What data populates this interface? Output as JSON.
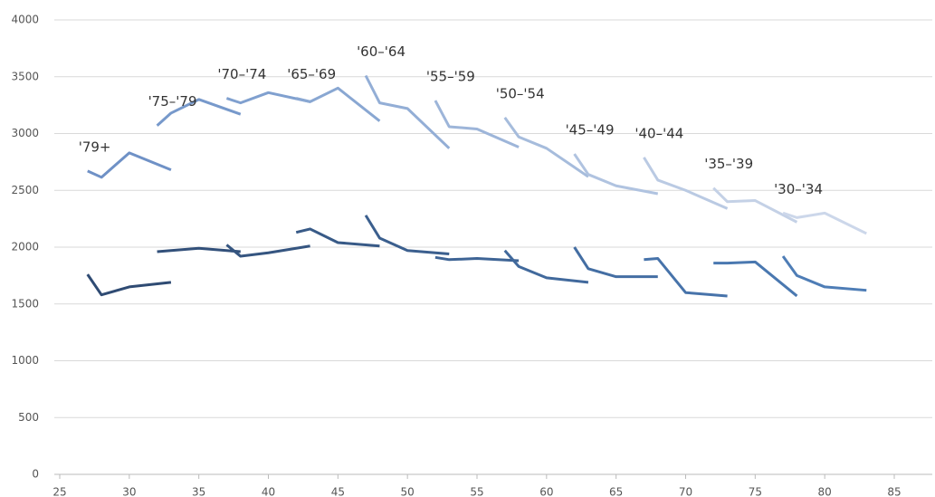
{
  "chart_data": {
    "type": "line",
    "xlim": [
      25,
      85
    ],
    "xticks": [
      25,
      30,
      35,
      40,
      45,
      50,
      55,
      60,
      65,
      70,
      75,
      80,
      85
    ],
    "ylim": [
      0,
      4000
    ],
    "yticks": [
      0,
      500,
      1000,
      1500,
      2000,
      2500,
      3000,
      3500,
      4000
    ],
    "grid": true,
    "series": [
      {
        "name": "'79+",
        "color": "#6f91c6",
        "x": [
          27,
          28,
          30,
          33
        ],
        "values": [
          2670,
          2615,
          2830,
          2680
        ]
      },
      {
        "name": "'75–'79",
        "color": "#7799cb",
        "x": [
          32,
          33,
          35,
          38
        ],
        "values": [
          3070,
          3180,
          3300,
          3170
        ]
      },
      {
        "name": "'70–'74",
        "color": "#80a0cf",
        "x": [
          37,
          38,
          40,
          43
        ],
        "values": [
          3310,
          3270,
          3360,
          3280
        ]
      },
      {
        "name": "'65–'69",
        "color": "#89a7d2",
        "x": [
          42,
          43,
          45,
          48
        ],
        "values": [
          3310,
          3280,
          3400,
          3110
        ]
      },
      {
        "name": "'60–'64",
        "color": "#93aed6",
        "x": [
          47,
          48,
          50,
          53
        ],
        "values": [
          3510,
          3270,
          3220,
          2870
        ]
      },
      {
        "name": "'55–'59",
        "color": "#9db5d9",
        "x": [
          52,
          53,
          55,
          58
        ],
        "values": [
          3290,
          3060,
          3040,
          2880
        ]
      },
      {
        "name": "'50–'54",
        "color": "#a6bcdc",
        "x": [
          57,
          58,
          60,
          63
        ],
        "values": [
          3140,
          2970,
          2870,
          2620
        ]
      },
      {
        "name": "'45–'49",
        "color": "#b0c3e0",
        "x": [
          62,
          63,
          65,
          68
        ],
        "values": [
          2820,
          2640,
          2540,
          2470
        ]
      },
      {
        "name": "'40–'44",
        "color": "#bacae3",
        "x": [
          67,
          68,
          70,
          73
        ],
        "values": [
          2790,
          2590,
          2500,
          2340
        ]
      },
      {
        "name": "'35–'39",
        "color": "#c4d1e6",
        "x": [
          72,
          73,
          75,
          78
        ],
        "values": [
          2520,
          2400,
          2410,
          2220
        ]
      },
      {
        "name": "'30–'34",
        "color": "#ccd7ea",
        "x": [
          77,
          78,
          80,
          83
        ],
        "values": [
          2300,
          2260,
          2300,
          2120
        ]
      },
      {
        "color": "#2f4b73",
        "x": [
          27,
          28,
          30,
          33
        ],
        "values": [
          1760,
          1580,
          1650,
          1690
        ]
      },
      {
        "color": "#32507a",
        "x": [
          32,
          33,
          35,
          38
        ],
        "values": [
          1960,
          1970,
          1990,
          1960
        ]
      },
      {
        "color": "#355580",
        "x": [
          37,
          38,
          40,
          43
        ],
        "values": [
          2020,
          1920,
          1950,
          2010
        ]
      },
      {
        "color": "#385a87",
        "x": [
          42,
          43,
          45,
          48
        ],
        "values": [
          2130,
          2160,
          2040,
          2010
        ]
      },
      {
        "color": "#3b5f8e",
        "x": [
          47,
          48,
          50,
          53
        ],
        "values": [
          2280,
          2080,
          1970,
          1940
        ]
      },
      {
        "color": "#3e6495",
        "x": [
          52,
          53,
          55,
          58
        ],
        "values": [
          1910,
          1890,
          1900,
          1880
        ]
      },
      {
        "color": "#41699c",
        "x": [
          57,
          58,
          60,
          63
        ],
        "values": [
          1970,
          1830,
          1730,
          1690
        ]
      },
      {
        "color": "#446ea3",
        "x": [
          62,
          63,
          65,
          68
        ],
        "values": [
          2000,
          1810,
          1740,
          1740
        ]
      },
      {
        "color": "#4773aa",
        "x": [
          67,
          68,
          70,
          73
        ],
        "values": [
          1890,
          1900,
          1600,
          1570
        ]
      },
      {
        "color": "#4a78b0",
        "x": [
          72,
          73,
          75,
          78
        ],
        "values": [
          1860,
          1860,
          1870,
          1570
        ]
      },
      {
        "color": "#4e7db6",
        "x": [
          77,
          78,
          80,
          83
        ],
        "values": [
          1920,
          1750,
          1650,
          1620
        ]
      }
    ]
  }
}
